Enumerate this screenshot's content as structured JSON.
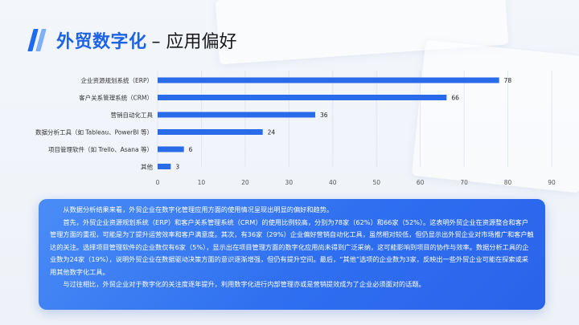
{
  "slide": {
    "title": "外贸数字化",
    "subtitle": "– 应用偏好",
    "paragraphs": [
      "从数据分析结果来看，外贸企业在数字化管理应用方面的使用情况呈现出明显的偏好和趋势。",
      "首先，外贸企业资源规划系统（ERP）和客户关系管理系统（CRM）的使用比例较高，分别为78家（62%）和66家（52%）。这表明外贸企业在资源整合和客户管理方面的重视，可能是为了提升运营效率和客户满意度。其次，有36家（29%）企业偏好营销自动化工具，虽然相对较低，但仍显示出外贸企业对市场推广和客户触达的关注。选择项目管理软件的企业数仅有6家（5%），显示出在项目管理方面的数字化应用尚未得到广泛采纳，这可能影响到项目的协作与效率。数据分析工具的企业数为24家（19%），说明外贸企业在数据驱动决策方面的意识逐渐增强，但仍有提升空间。最后，“其他”选项的企业数为3家，反映出一些外贸企业可能在探索或采用其他数字化工具。",
      "与过往相比，外贸企业对于数字化的关注度逐年提升，利用数字化进行内部管理亦或是营销提效成为了企业必须面对的话题。"
    ]
  },
  "colors": {
    "accent": "#1d63e6",
    "bar": "#2a6bea",
    "panel": "#2f6ff0"
  },
  "chart_data": {
    "type": "bar",
    "orientation": "horizontal",
    "categories": [
      "企业资源规划系统（ERP）",
      "客户关系管理系统（CRM）",
      "营销自动化工具",
      "数据分析工具（如 Tableau、PowerBI 等）",
      "项目管理软件（如 Trello、Asana 等）",
      "其他"
    ],
    "values": [
      78,
      66,
      36,
      24,
      6,
      3
    ],
    "xlim": [
      0,
      90
    ],
    "xticks": [
      0,
      10,
      20,
      30,
      40,
      50,
      60,
      70,
      80,
      90
    ],
    "grid": true,
    "data_labels": true,
    "title": "",
    "xlabel": "",
    "ylabel": ""
  }
}
